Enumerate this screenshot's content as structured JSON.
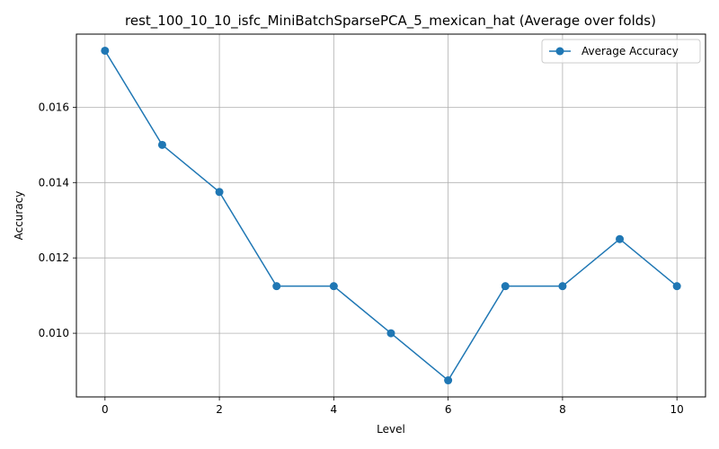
{
  "chart_data": {
    "type": "line",
    "title": "rest_100_10_10_isfc_MiniBatchSparsePCA_5_mexican_hat (Average over folds)",
    "xlabel": "Level",
    "ylabel": "Accuracy",
    "x": [
      0,
      1,
      2,
      3,
      4,
      5,
      6,
      7,
      8,
      9,
      10
    ],
    "series": [
      {
        "name": "Average Accuracy",
        "values": [
          0.0175,
          0.015,
          0.01375,
          0.01125,
          0.01125,
          0.01,
          0.00875,
          0.01125,
          0.01125,
          0.0125,
          0.01125
        ],
        "color": "#1f77b4",
        "marker": "circle"
      }
    ],
    "xlim": [
      -0.5,
      10.5
    ],
    "ylim": [
      0.00831,
      0.01794
    ],
    "xticks": [
      0,
      2,
      4,
      6,
      8,
      10
    ],
    "xtick_labels": [
      "0",
      "2",
      "4",
      "6",
      "8",
      "10"
    ],
    "yticks": [
      0.01,
      0.012,
      0.014,
      0.016
    ],
    "ytick_labels": [
      "0.010",
      "0.012",
      "0.014",
      "0.016"
    ],
    "grid": true,
    "legend_position": "top-right"
  }
}
